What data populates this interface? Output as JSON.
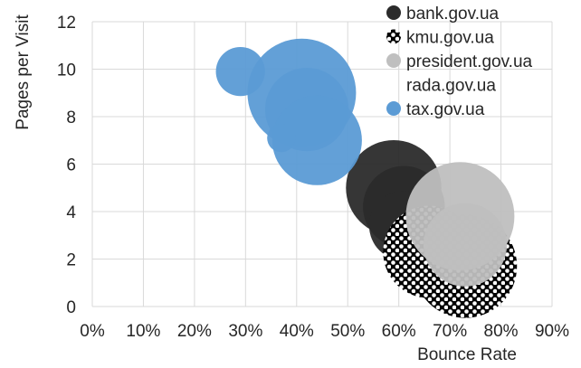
{
  "chart_data": {
    "type": "bubble",
    "title": "",
    "xlabel": "Bounce Rate",
    "ylabel": "Pages per Visit",
    "xlim": [
      0,
      0.9
    ],
    "ylim": [
      0,
      12
    ],
    "x_ticks": [
      "0%",
      "10%",
      "20%",
      "30%",
      "40%",
      "50%",
      "60%",
      "70%",
      "80%",
      "90%"
    ],
    "y_ticks": [
      "0",
      "2",
      "4",
      "6",
      "8",
      "10",
      "12"
    ],
    "grid": true,
    "legend_position": "top-right",
    "series": [
      {
        "name": "bank.gov.ua",
        "color": "#2b2b2b",
        "pattern": "solid",
        "points": [
          {
            "x": 0.59,
            "y": 5.0,
            "size": 34
          },
          {
            "x": 0.61,
            "y": 4.2,
            "size": 25
          },
          {
            "x": 0.61,
            "y": 3.4,
            "size": 18
          }
        ]
      },
      {
        "name": "kmu.gov.ua",
        "color": "#000000",
        "pattern": "dots",
        "points": [
          {
            "x": 0.66,
            "y": 2.3,
            "size": 32
          },
          {
            "x": 0.73,
            "y": 1.7,
            "size": 40
          }
        ]
      },
      {
        "name": "president.gov.ua",
        "color": "#bfbfbf",
        "pattern": "solid",
        "points": [
          {
            "x": 0.72,
            "y": 3.8,
            "size": 44
          },
          {
            "x": 0.73,
            "y": 2.6,
            "size": 26
          }
        ]
      },
      {
        "name": "rada.gov.ua",
        "color": "none",
        "pattern": "none",
        "points": []
      },
      {
        "name": "tax.gov.ua",
        "color": "#5b9bd5",
        "pattern": "solid",
        "points": [
          {
            "x": 0.29,
            "y": 9.9,
            "size": 9
          },
          {
            "x": 0.41,
            "y": 9.0,
            "size": 44
          },
          {
            "x": 0.42,
            "y": 8.3,
            "size": 26
          },
          {
            "x": 0.44,
            "y": 7.0,
            "size": 30
          },
          {
            "x": 0.37,
            "y": 7.1,
            "size": 3
          }
        ]
      }
    ]
  }
}
